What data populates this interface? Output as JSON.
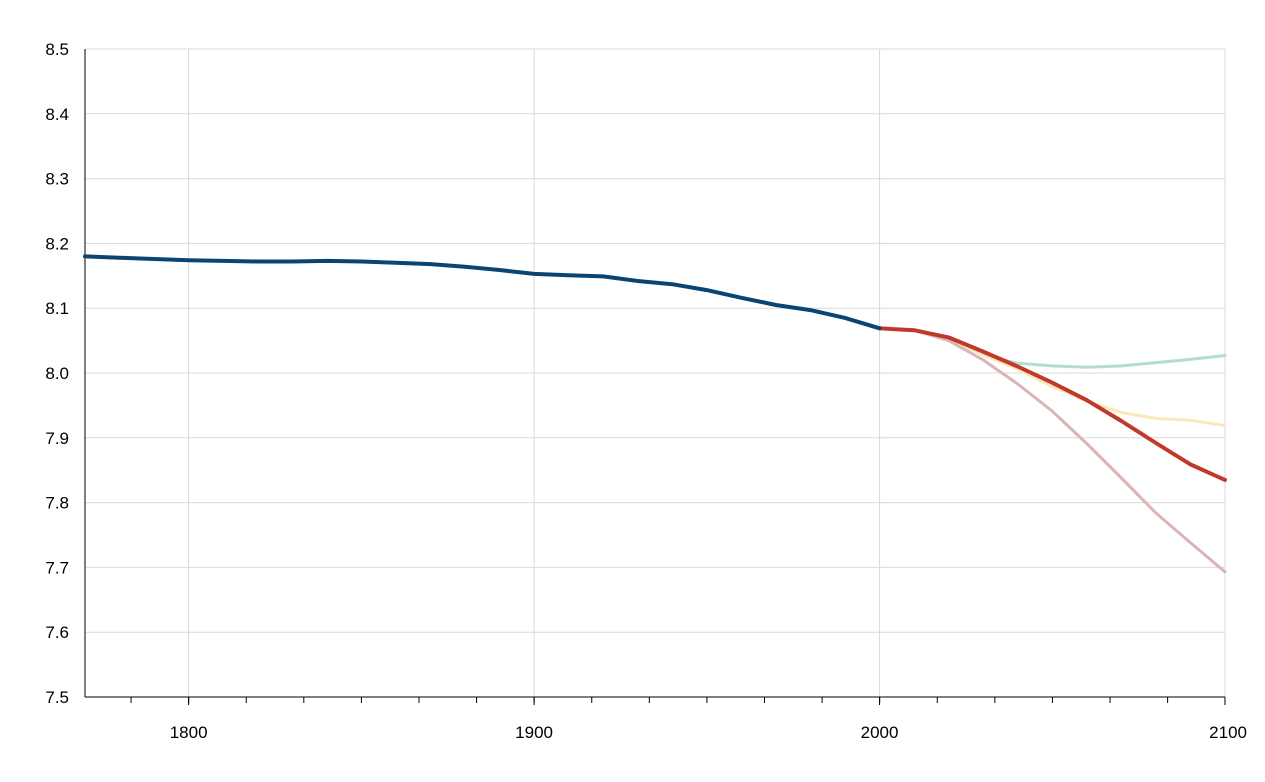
{
  "chart_data": {
    "type": "line",
    "title": "",
    "xlabel": "",
    "ylabel": "",
    "xlim": [
      1770,
      2100
    ],
    "ylim": [
      7.5,
      8.5
    ],
    "x_ticks": [
      1800,
      1900,
      2000,
      2100
    ],
    "x_tick_labels": [
      "1800",
      "1900",
      "2000",
      "2100"
    ],
    "x_minor_step": 16.67,
    "y_ticks": [
      7.5,
      7.6,
      7.7,
      7.8,
      7.9,
      8.0,
      8.1,
      8.2,
      8.3,
      8.4,
      8.5
    ],
    "y_tick_labels": [
      "7.5",
      "7.6",
      "7.7",
      "7.8",
      "7.9",
      "8.0",
      "8.1",
      "8.2",
      "8.3",
      "8.4",
      "8.5"
    ],
    "grid": true,
    "legend": "none",
    "series": [
      {
        "color": "#b3dcd6",
        "stroke": 3,
        "points": [
          [
            2000,
            8.069
          ],
          [
            2010,
            8.066
          ],
          [
            2020,
            8.052
          ],
          [
            2030,
            8.028
          ],
          [
            2040,
            8.015
          ],
          [
            2050,
            8.011
          ],
          [
            2060,
            8.009
          ],
          [
            2070,
            8.011
          ],
          [
            2080,
            8.016
          ],
          [
            2090,
            8.021
          ],
          [
            2100,
            8.027
          ]
        ]
      },
      {
        "color": "#fbe8b9",
        "stroke": 3,
        "points": [
          [
            2000,
            8.069
          ],
          [
            2010,
            8.066
          ],
          [
            2020,
            8.052
          ],
          [
            2030,
            8.028
          ],
          [
            2040,
            8.006
          ],
          [
            2050,
            7.979
          ],
          [
            2060,
            7.957
          ],
          [
            2070,
            7.939
          ],
          [
            2080,
            7.93
          ],
          [
            2090,
            7.927
          ],
          [
            2100,
            7.919
          ]
        ]
      },
      {
        "color": "#d9b5b5",
        "stroke": 3,
        "points": [
          [
            2000,
            8.069
          ],
          [
            2010,
            8.066
          ],
          [
            2020,
            8.05
          ],
          [
            2030,
            8.02
          ],
          [
            2040,
            7.983
          ],
          [
            2050,
            7.941
          ],
          [
            2060,
            7.891
          ],
          [
            2070,
            7.838
          ],
          [
            2080,
            7.784
          ],
          [
            2090,
            7.738
          ],
          [
            2100,
            7.693
          ]
        ]
      },
      {
        "color": "#c0392b",
        "stroke": 4,
        "points": [
          [
            2000,
            8.069
          ],
          [
            2010,
            8.066
          ],
          [
            2020,
            8.055
          ],
          [
            2030,
            8.033
          ],
          [
            2040,
            8.01
          ],
          [
            2050,
            7.985
          ],
          [
            2060,
            7.958
          ],
          [
            2070,
            7.926
          ],
          [
            2080,
            7.892
          ],
          [
            2090,
            7.859
          ],
          [
            2100,
            7.835
          ]
        ]
      },
      {
        "color": "#0b4470",
        "stroke": 4,
        "points": [
          [
            1770,
            8.18
          ],
          [
            1780,
            8.178
          ],
          [
            1790,
            8.176
          ],
          [
            1800,
            8.174
          ],
          [
            1810,
            8.173
          ],
          [
            1820,
            8.172
          ],
          [
            1830,
            8.172
          ],
          [
            1840,
            8.173
          ],
          [
            1850,
            8.172
          ],
          [
            1860,
            8.17
          ],
          [
            1870,
            8.168
          ],
          [
            1880,
            8.164
          ],
          [
            1890,
            8.159
          ],
          [
            1900,
            8.153
          ],
          [
            1910,
            8.151
          ],
          [
            1920,
            8.149
          ],
          [
            1930,
            8.142
          ],
          [
            1940,
            8.137
          ],
          [
            1950,
            8.128
          ],
          [
            1960,
            8.116
          ],
          [
            1970,
            8.105
          ],
          [
            1980,
            8.097
          ],
          [
            1990,
            8.085
          ],
          [
            2000,
            8.069
          ]
        ]
      }
    ]
  }
}
